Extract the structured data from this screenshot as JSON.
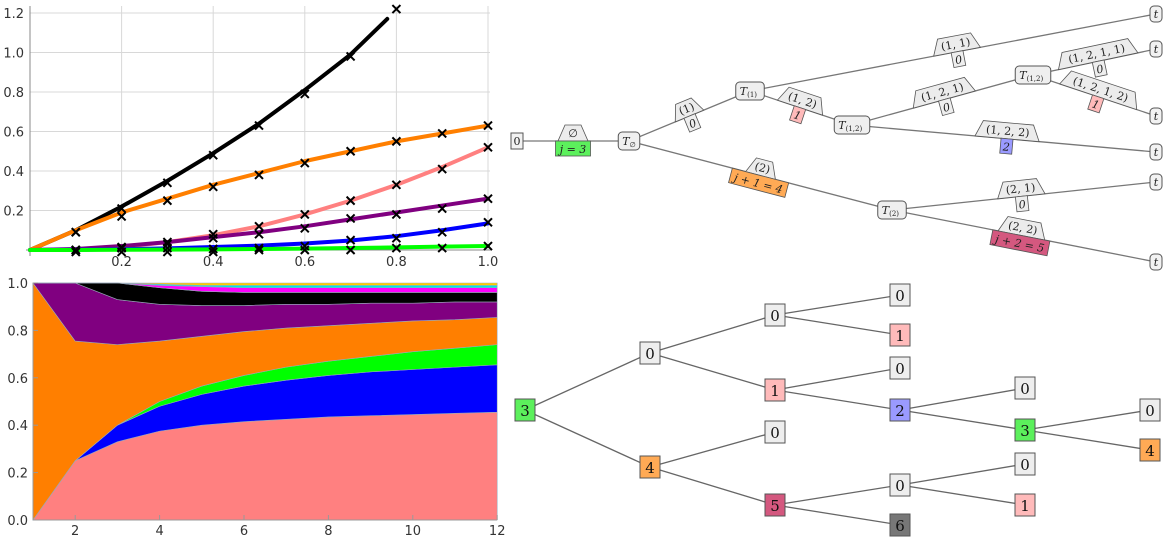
{
  "chart_data": [
    {
      "type": "line",
      "grid": true,
      "xlim": [
        0,
        1.0
      ],
      "ylim": [
        0,
        1.22
      ],
      "x_ticks": [
        "0.2",
        "0.4",
        "0.6",
        "0.8",
        "1.0"
      ],
      "y_ticks": [
        "0.2",
        "0.4",
        "0.6",
        "0.8",
        "1.0",
        "1.2"
      ],
      "x_tick_values": [
        0.2,
        0.4,
        0.6,
        0.8,
        1.0
      ],
      "y_tick_values": [
        0.2,
        0.4,
        0.6,
        0.8,
        1.0,
        1.2
      ],
      "curve_x": [
        0,
        0.1,
        0.2,
        0.3,
        0.4,
        0.5,
        0.6,
        0.7,
        0.8,
        0.9,
        1.0
      ],
      "marker_x": [
        0.1,
        0.2,
        0.3,
        0.4,
        0.5,
        0.6,
        0.7,
        0.8,
        0.9,
        1.0
      ],
      "series": [
        {
          "color": "#000000",
          "curve": [
            0,
            0.1,
            0.22,
            0.35,
            0.49,
            0.64,
            0.81,
            0.99,
            null,
            null,
            null
          ],
          "curve_end": [
            0.78,
            1.17
          ],
          "markers": [
            0.09,
            0.21,
            0.34,
            0.48,
            0.63,
            0.79,
            0.98,
            1.22,
            null,
            null
          ]
        },
        {
          "color": "#ff7f00",
          "curve": [
            0,
            0.1,
            0.19,
            0.26,
            0.33,
            0.39,
            0.45,
            0.5,
            0.55,
            0.59,
            0.63
          ],
          "markers": [
            0.09,
            0.17,
            0.25,
            0.32,
            0.38,
            0.44,
            0.5,
            0.55,
            0.59,
            0.63
          ]
        },
        {
          "color": "#ff8080",
          "curve": [
            0,
            0.003,
            0.015,
            0.04,
            0.075,
            0.12,
            0.18,
            0.25,
            0.33,
            0.42,
            0.52
          ],
          "markers": [
            0.0,
            0.01,
            0.04,
            0.08,
            0.12,
            0.18,
            0.25,
            0.33,
            0.41,
            0.52
          ]
        },
        {
          "color": "#800080",
          "curve": [
            0,
            0.005,
            0.02,
            0.04,
            0.065,
            0.09,
            0.12,
            0.155,
            0.19,
            0.225,
            0.26
          ],
          "markers": [
            0.0,
            0.015,
            0.03,
            0.06,
            0.08,
            0.11,
            0.16,
            0.18,
            0.21,
            0.26
          ]
        },
        {
          "color": "#0000ff",
          "curve": [
            0,
            0.001,
            0.004,
            0.008,
            0.015,
            0.022,
            0.033,
            0.048,
            0.07,
            0.1,
            0.135
          ],
          "markers": [
            0.0,
            0.01,
            0.01,
            0.005,
            0.01,
            0.02,
            0.05,
            0.06,
            0.09,
            0.14
          ]
        },
        {
          "color": "#00ff00",
          "curve": [
            0,
            0.0,
            0.001,
            0.002,
            0.003,
            0.005,
            0.007,
            0.01,
            0.013,
            0.017,
            0.02
          ],
          "markers": [
            -0.01,
            -0.01,
            -0.01,
            -0.01,
            0.0,
            0.0,
            0.0,
            0.01,
            0.01,
            0.02
          ]
        }
      ]
    },
    {
      "type": "area",
      "stacked": true,
      "grid": false,
      "xlim": [
        1,
        12
      ],
      "ylim": [
        0,
        1.0
      ],
      "x": [
        1,
        2,
        3,
        4,
        5,
        6,
        7,
        8,
        9,
        10,
        11,
        12
      ],
      "x_ticks": [
        "2",
        "4",
        "6",
        "8",
        "10",
        "12"
      ],
      "x_tick_values": [
        2,
        4,
        6,
        8,
        10,
        12
      ],
      "y_ticks": [
        "0.0",
        "0.2",
        "0.4",
        "0.6",
        "0.8",
        "1.0"
      ],
      "y_tick_values": [
        0,
        0.2,
        0.4,
        0.6,
        0.8,
        1.0
      ],
      "series_cumulative_top": [
        {
          "color": "#ff8080",
          "values": [
            0,
            0.25,
            0.33,
            0.375,
            0.4,
            0.415,
            0.425,
            0.435,
            0.44,
            0.445,
            0.45,
            0.455
          ]
        },
        {
          "color": "#0000ff",
          "values": [
            0,
            0.25,
            0.4,
            0.48,
            0.53,
            0.565,
            0.59,
            0.61,
            0.625,
            0.635,
            0.645,
            0.655
          ]
        },
        {
          "color": "#00ff00",
          "values": [
            0,
            0.25,
            0.4,
            0.5,
            0.565,
            0.61,
            0.645,
            0.67,
            0.69,
            0.71,
            0.725,
            0.74
          ]
        },
        {
          "color": "#ff7f00",
          "values": [
            1,
            0.755,
            0.74,
            0.755,
            0.775,
            0.795,
            0.81,
            0.82,
            0.83,
            0.84,
            0.845,
            0.855
          ]
        },
        {
          "color": "#800080",
          "values": [
            1,
            1,
            0.93,
            0.91,
            0.905,
            0.905,
            0.91,
            0.91,
            0.915,
            0.915,
            0.92,
            0.92
          ]
        },
        {
          "color": "#000000",
          "values": [
            1,
            1,
            1,
            0.98,
            0.965,
            0.96,
            0.96,
            0.96,
            0.96,
            0.96,
            0.96,
            0.96
          ]
        },
        {
          "color": "#ff00ff",
          "values": [
            1,
            1,
            1,
            0.99,
            0.985,
            0.98,
            0.98,
            0.98,
            0.98,
            0.98,
            0.98,
            0.98
          ]
        },
        {
          "color": "#00e5e5",
          "values": [
            1,
            1,
            1,
            0.995,
            0.99,
            0.99,
            0.99,
            0.99,
            0.99,
            0.99,
            0.99,
            0.99
          ]
        },
        {
          "color": "#ffcc00",
          "values": [
            1,
            1,
            1,
            1,
            1,
            1,
            1,
            1,
            1,
            1,
            1,
            1
          ]
        }
      ]
    }
  ],
  "colors": {
    "green": "#5cf05c",
    "pink": "#ffbaba",
    "blue": "#9a9aff",
    "orange": "#ffaa55",
    "magenta": "#d4587f",
    "gray": "#777777",
    "light": "#eeeeee"
  },
  "diagram_top": {
    "nodes": {
      "root": {
        "main": "0"
      },
      "T_empty": {
        "main": "T",
        "sub": "∅"
      },
      "T_1": {
        "main": "T",
        "sub": "(1)"
      },
      "T_12": {
        "main": "T",
        "sub": "(1,2)"
      },
      "T_121": {
        "main": "T",
        "sub": "(1,2)"
      },
      "T_2": {
        "main": "T",
        "sub": "(2)"
      },
      "leaf": {
        "main": "t"
      }
    },
    "edge_labels": [
      {
        "top": "∅",
        "bottom": "j = 3",
        "color": "green"
      },
      {
        "top": "(1)",
        "bottom": "0",
        "color": "light"
      },
      {
        "top": "(1, 1)",
        "bottom": "0",
        "color": "light"
      },
      {
        "top": "(1, 2)",
        "bottom": "1",
        "color": "pink"
      },
      {
        "top": "(1, 2, 1)",
        "bottom": "0",
        "color": "light"
      },
      {
        "top": "(1, 2, 1, 1)",
        "bottom": "0",
        "color": "light"
      },
      {
        "top": "(1, 2, 1, 2)",
        "bottom": "1",
        "color": "pink"
      },
      {
        "top": "(1, 2, 2)",
        "bottom": "2",
        "color": "blue"
      },
      {
        "top": "(2)",
        "bottom": "j + 1 = 4",
        "color": "orange"
      },
      {
        "top": "(2, 1)",
        "bottom": "0",
        "color": "light"
      },
      {
        "top": "(2, 2)",
        "bottom": "j + 2 = 5",
        "color": "magenta"
      }
    ]
  },
  "diagram_bottom": {
    "nodes": [
      {
        "label": "3",
        "color": "green"
      },
      {
        "label": "0",
        "color": "light"
      },
      {
        "label": "4",
        "color": "orange"
      },
      {
        "label": "0",
        "color": "light"
      },
      {
        "label": "1",
        "color": "pink"
      },
      {
        "label": "0",
        "color": "light"
      },
      {
        "label": "5",
        "color": "magenta"
      },
      {
        "label": "0",
        "color": "light"
      },
      {
        "label": "1",
        "color": "pink"
      },
      {
        "label": "0",
        "color": "light"
      },
      {
        "label": "2",
        "color": "blue"
      },
      {
        "label": "0",
        "color": "light"
      },
      {
        "label": "6",
        "color": "gray"
      },
      {
        "label": "0",
        "color": "light"
      },
      {
        "label": "3",
        "color": "green"
      },
      {
        "label": "0",
        "color": "light"
      },
      {
        "label": "1",
        "color": "pink"
      },
      {
        "label": "0",
        "color": "light"
      },
      {
        "label": "4",
        "color": "orange"
      }
    ]
  }
}
